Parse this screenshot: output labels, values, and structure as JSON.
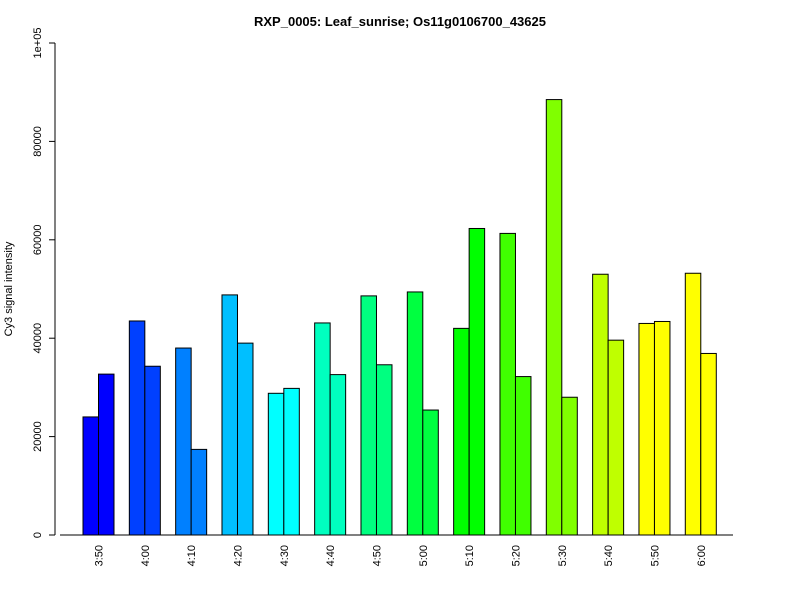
{
  "chart_data": {
    "type": "bar",
    "title": "RXP_0005: Leaf_sunrise; Os11g0106700_43625",
    "xlabel": "",
    "ylabel": "Cy3 signal intensity",
    "ylim": [
      0,
      100000
    ],
    "yticks": [
      0,
      20000,
      40000,
      60000,
      80000,
      100000
    ],
    "ytick_labels": [
      "0",
      "20000",
      "40000",
      "60000",
      "80000",
      "1e+05"
    ],
    "categories": [
      "3:50",
      "4:00",
      "4:10",
      "4:20",
      "4:30",
      "4:40",
      "4:50",
      "5:00",
      "5:10",
      "5:20",
      "5:30",
      "5:40",
      "5:50",
      "6:00"
    ],
    "series": [
      {
        "values": [
          24000,
          43500,
          38000,
          48800,
          28800,
          43100,
          48600,
          49400,
          42000,
          61300,
          88500,
          53000,
          43000,
          53200
        ]
      },
      {
        "values": [
          32700,
          34300,
          17400,
          39000,
          29800,
          32600,
          34600,
          25400,
          62300,
          32200,
          28000,
          39600,
          43400,
          36900
        ]
      }
    ],
    "colors": [
      "#0000FF",
      "#0040FF",
      "#0080FF",
      "#00BFFF",
      "#00FFFF",
      "#00FFBF",
      "#00FF80",
      "#00FF40",
      "#00FF00",
      "#40FF00",
      "#80FF00",
      "#BFFF00",
      "#FFFF00",
      "#FFFF00"
    ],
    "legend": "none",
    "grid": false
  }
}
